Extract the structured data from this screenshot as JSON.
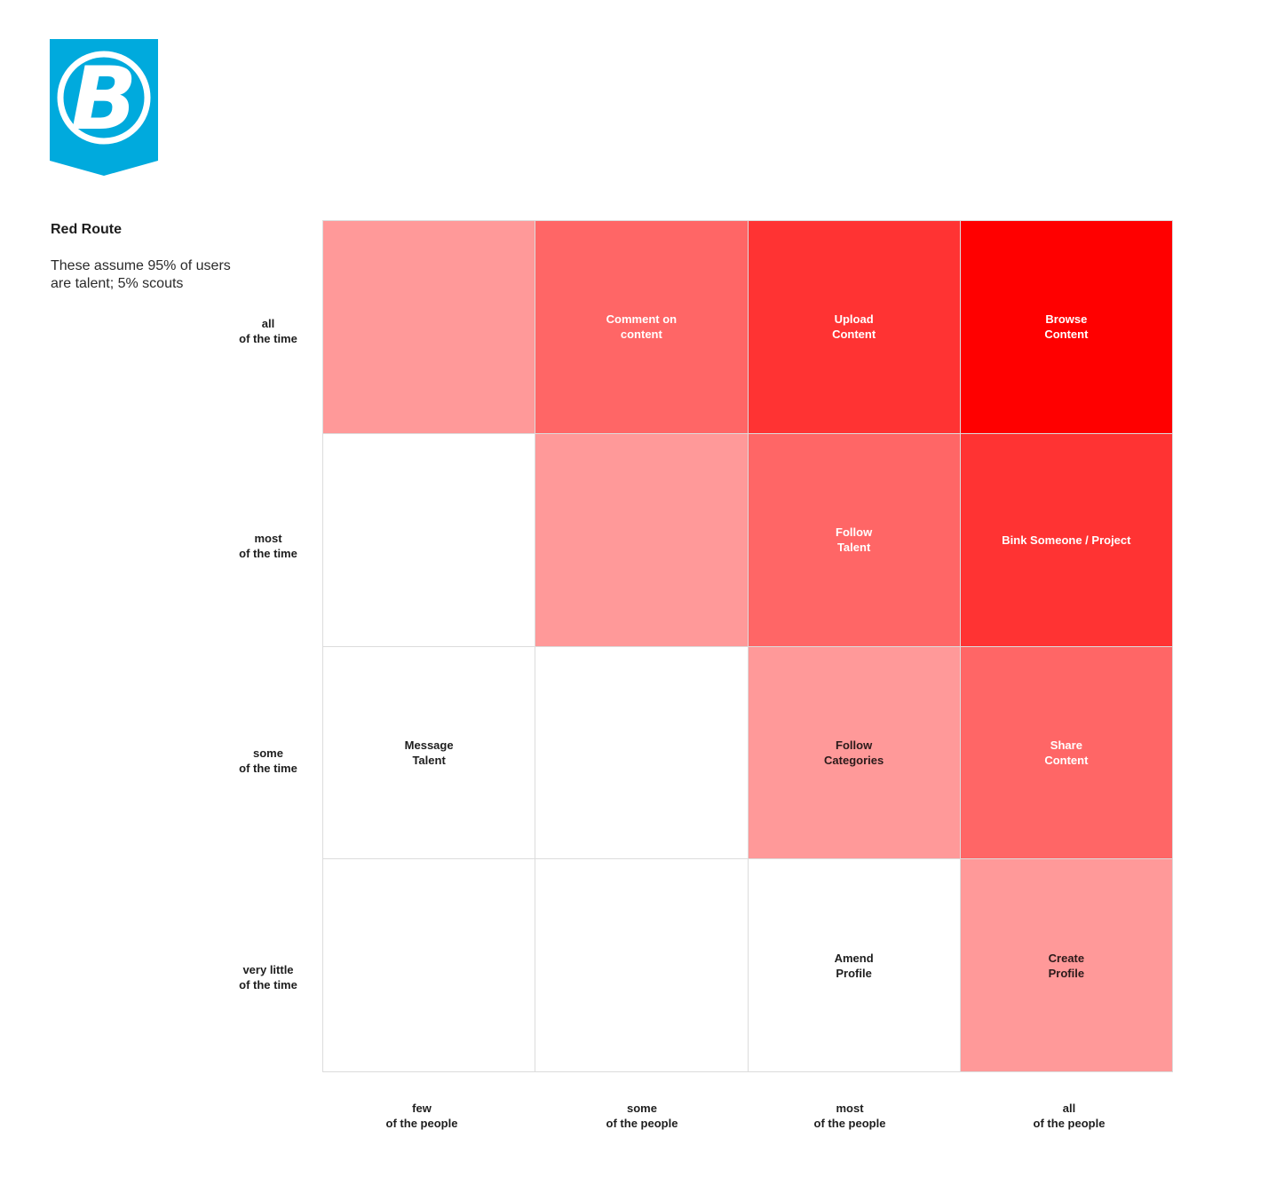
{
  "header": {
    "logo_letter": "B",
    "logo_color": "#00aadd",
    "title": "Red Route",
    "subtitle_line1": "These assume 95% of users",
    "subtitle_line2": "are talent; 5% scouts"
  },
  "rows": [
    {
      "line1": "all",
      "line2": "of the time"
    },
    {
      "line1": "most",
      "line2": "of the time"
    },
    {
      "line1": "some",
      "line2": "of the time"
    },
    {
      "line1": "very little",
      "line2": "of the time"
    }
  ],
  "columns": [
    {
      "line1": "few",
      "line2": "of the people"
    },
    {
      "line1": "some",
      "line2": "of the people"
    },
    {
      "line1": "most",
      "line2": "of the people"
    },
    {
      "line1": "all",
      "line2": "of the people"
    }
  ],
  "cells": [
    [
      {
        "text": "",
        "weight": 1
      },
      {
        "text": "Comment on\ncontent",
        "weight": 2
      },
      {
        "text": "Upload\nContent",
        "weight": 3
      },
      {
        "text": "Browse\nContent",
        "weight": 4
      }
    ],
    [
      {
        "text": "",
        "weight": 0
      },
      {
        "text": "",
        "weight": 1
      },
      {
        "text": "Follow\nTalent",
        "weight": 2
      },
      {
        "text": "Bink Someone / Project",
        "weight": 3
      }
    ],
    [
      {
        "text": "Message\nTalent",
        "weight": 0
      },
      {
        "text": "",
        "weight": 0
      },
      {
        "text": "Follow\nCategories",
        "weight": 1
      },
      {
        "text": "Share\nContent",
        "weight": 2
      }
    ],
    [
      {
        "text": "",
        "weight": 0
      },
      {
        "text": "",
        "weight": 0
      },
      {
        "text": "Amend\nProfile",
        "weight": 0
      },
      {
        "text": "Create\nProfile",
        "weight": 1
      }
    ]
  ],
  "colors": {
    "weight_0": "#ffffff",
    "weight_1": "#ff9999",
    "weight_2": "#ff6666",
    "weight_3": "#ff3333",
    "weight_4": "#ff0000",
    "grid_line": "#dcdcdc"
  }
}
